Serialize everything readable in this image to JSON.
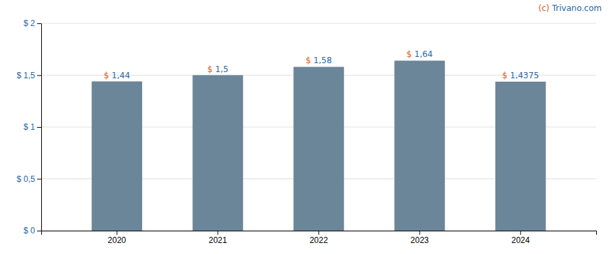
{
  "chart_data": {
    "type": "bar",
    "categories": [
      "2020",
      "2021",
      "2022",
      "2023",
      "2024"
    ],
    "values": [
      1.44,
      1.5,
      1.58,
      1.64,
      1.4375
    ],
    "value_labels": [
      "$ 1,44",
      "$ 1,5",
      "$ 1,58",
      "$ 1,64",
      "$ 1,4375"
    ],
    "data_labels": true,
    "color": "#6b8599",
    "ylim": [
      0,
      2.0
    ],
    "yticks": [
      {
        "value": 0,
        "label": "$ 0"
      },
      {
        "value": 0.5,
        "label": "$ 0,5"
      },
      {
        "value": 1.0,
        "label": "$ 1"
      },
      {
        "value": 1.5,
        "label": "$ 1,5"
      },
      {
        "value": 2.0,
        "label": "$ 2"
      }
    ],
    "grid": true,
    "annotations": [
      "(c) Trivano.com"
    ]
  }
}
